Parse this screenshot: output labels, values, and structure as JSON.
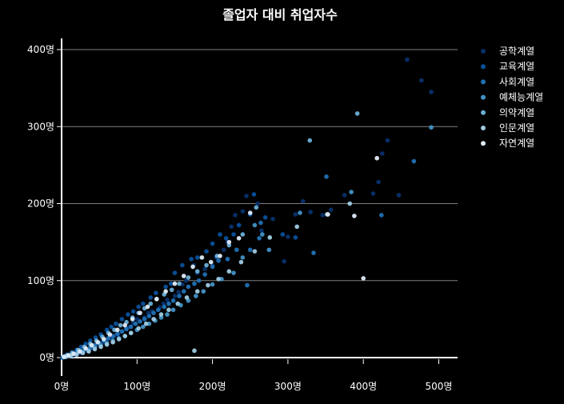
{
  "chart_data": {
    "type": "scatter",
    "title": "졸업자 대비 취업자수",
    "xlabel": "",
    "ylabel": "",
    "xlim": [
      0,
      520
    ],
    "ylim": [
      -8,
      410
    ],
    "x_ticks": [
      {
        "value": 0,
        "label": "0명"
      },
      {
        "value": 100,
        "label": "100명"
      },
      {
        "value": 200,
        "label": "200명"
      },
      {
        "value": 300,
        "label": "300명"
      },
      {
        "value": 400,
        "label": "400명"
      },
      {
        "value": 500,
        "label": "500명"
      }
    ],
    "y_ticks": [
      {
        "value": 0,
        "label": "0명"
      },
      {
        "value": 100,
        "label": "100명"
      },
      {
        "value": 200,
        "label": "200명"
      },
      {
        "value": 300,
        "label": "300명"
      },
      {
        "value": 400,
        "label": "400명"
      }
    ],
    "grid": "horizontal",
    "legend_position": "top-right",
    "series": [
      {
        "name": "공학계열",
        "color": "#08306b",
        "points": [
          [
            458,
            387
          ],
          [
            477,
            360
          ],
          [
            490,
            345
          ],
          [
            432,
            282
          ],
          [
            425,
            265
          ],
          [
            420,
            228
          ],
          [
            447,
            211
          ],
          [
            413,
            213
          ],
          [
            375,
            211
          ],
          [
            357,
            192
          ],
          [
            346,
            185
          ],
          [
            330,
            189
          ],
          [
            320,
            203
          ],
          [
            310,
            186
          ],
          [
            300,
            157
          ],
          [
            295,
            125
          ],
          [
            280,
            180
          ],
          [
            265,
            165
          ],
          [
            260,
            200
          ],
          [
            245,
            210
          ],
          [
            240,
            190
          ],
          [
            230,
            185
          ],
          [
            225,
            170
          ],
          [
            220,
            150
          ],
          [
            215,
            140
          ],
          [
            205,
            130
          ],
          [
            200,
            120
          ],
          [
            190,
            115
          ],
          [
            180,
            110
          ],
          [
            175,
            120
          ],
          [
            165,
            100
          ],
          [
            160,
            95
          ],
          [
            155,
            85
          ],
          [
            150,
            80
          ],
          [
            140,
            75
          ],
          [
            135,
            70
          ],
          [
            130,
            65
          ],
          [
            120,
            60
          ],
          [
            115,
            58
          ],
          [
            110,
            52
          ],
          [
            100,
            50
          ],
          [
            95,
            45
          ],
          [
            90,
            40
          ],
          [
            85,
            38
          ],
          [
            80,
            34
          ],
          [
            75,
            30
          ],
          [
            70,
            28
          ],
          [
            65,
            26
          ],
          [
            60,
            24
          ],
          [
            55,
            20
          ],
          [
            50,
            18
          ],
          [
            45,
            15
          ],
          [
            40,
            12
          ],
          [
            35,
            10
          ],
          [
            30,
            8
          ],
          [
            25,
            6
          ],
          [
            20,
            4
          ],
          [
            15,
            3
          ],
          [
            10,
            2
          ],
          [
            5,
            1
          ],
          [
            2,
            0
          ]
        ]
      },
      {
        "name": "교육계열",
        "color": "#08519c",
        "points": [
          [
            310,
            156
          ],
          [
            293,
            160
          ],
          [
            270,
            182
          ],
          [
            255,
            212
          ],
          [
            250,
            186
          ],
          [
            235,
            172
          ],
          [
            228,
            160
          ],
          [
            218,
            155
          ],
          [
            210,
            160
          ],
          [
            200,
            148
          ],
          [
            192,
            138
          ],
          [
            180,
            130
          ],
          [
            172,
            128
          ],
          [
            160,
            120
          ],
          [
            150,
            110
          ],
          [
            145,
            96
          ],
          [
            138,
            92
          ],
          [
            125,
            84
          ],
          [
            118,
            78
          ],
          [
            108,
            70
          ],
          [
            102,
            66
          ],
          [
            95,
            60
          ],
          [
            88,
            56
          ],
          [
            80,
            50
          ],
          [
            72,
            44
          ],
          [
            66,
            40
          ],
          [
            60,
            36
          ],
          [
            52,
            30
          ],
          [
            45,
            26
          ],
          [
            38,
            22
          ],
          [
            32,
            18
          ],
          [
            26,
            14
          ],
          [
            20,
            10
          ],
          [
            14,
            7
          ],
          [
            8,
            4
          ],
          [
            4,
            2
          ],
          [
            1,
            0
          ]
        ]
      },
      {
        "name": "사회계열",
        "color": "#2171b5",
        "points": [
          [
            467,
            255
          ],
          [
            424,
            185
          ],
          [
            351,
            235
          ],
          [
            334,
            136
          ],
          [
            264,
            175
          ],
          [
            262,
            155
          ],
          [
            250,
            140
          ],
          [
            246,
            94
          ],
          [
            232,
            140
          ],
          [
            220,
            128
          ],
          [
            208,
            126
          ],
          [
            200,
            118
          ],
          [
            190,
            108
          ],
          [
            182,
            100
          ],
          [
            176,
            96
          ],
          [
            168,
            92
          ],
          [
            162,
            86
          ],
          [
            156,
            80
          ],
          [
            148,
            74
          ],
          [
            142,
            70
          ],
          [
            136,
            66
          ],
          [
            128,
            62
          ],
          [
            122,
            58
          ],
          [
            116,
            54
          ],
          [
            110,
            50
          ],
          [
            104,
            47
          ],
          [
            98,
            44
          ],
          [
            92,
            40
          ],
          [
            86,
            37
          ],
          [
            80,
            34
          ],
          [
            74,
            31
          ],
          [
            68,
            28
          ],
          [
            62,
            25
          ],
          [
            56,
            22
          ],
          [
            50,
            19
          ],
          [
            44,
            16
          ],
          [
            38,
            14
          ],
          [
            32,
            11
          ],
          [
            26,
            9
          ],
          [
            20,
            7
          ],
          [
            14,
            5
          ],
          [
            8,
            3
          ],
          [
            3,
            1
          ]
        ]
      },
      {
        "name": "예체능계열",
        "color": "#4292c6",
        "points": [
          [
            490,
            299
          ],
          [
            384,
            215
          ],
          [
            316,
            188
          ],
          [
            275,
            140
          ],
          [
            266,
            160
          ],
          [
            256,
            172
          ],
          [
            240,
            130
          ],
          [
            228,
            110
          ],
          [
            212,
            102
          ],
          [
            200,
            95
          ],
          [
            188,
            86
          ],
          [
            178,
            80
          ],
          [
            168,
            74
          ],
          [
            158,
            68
          ],
          [
            148,
            62
          ],
          [
            140,
            56
          ],
          [
            132,
            52
          ],
          [
            124,
            48
          ],
          [
            116,
            44
          ],
          [
            108,
            40
          ],
          [
            100,
            36
          ],
          [
            92,
            32
          ],
          [
            84,
            28
          ],
          [
            76,
            25
          ],
          [
            68,
            22
          ],
          [
            60,
            19
          ],
          [
            52,
            16
          ],
          [
            44,
            13
          ],
          [
            36,
            10
          ],
          [
            28,
            8
          ],
          [
            20,
            5
          ],
          [
            12,
            3
          ],
          [
            6,
            1
          ]
        ]
      },
      {
        "name": "의약계열",
        "color": "#6baed6",
        "points": [
          [
            392,
            317
          ],
          [
            329,
            282
          ],
          [
            258,
            195
          ],
          [
            240,
            160
          ],
          [
            222,
            146
          ],
          [
            206,
            132
          ],
          [
            192,
            120
          ],
          [
            180,
            112
          ],
          [
            168,
            104
          ],
          [
            156,
            96
          ],
          [
            146,
            88
          ],
          [
            136,
            82
          ],
          [
            126,
            76
          ],
          [
            118,
            70
          ],
          [
            110,
            64
          ],
          [
            102,
            58
          ],
          [
            94,
            52
          ],
          [
            86,
            46
          ],
          [
            78,
            42
          ],
          [
            70,
            36
          ],
          [
            62,
            32
          ],
          [
            54,
            27
          ],
          [
            46,
            22
          ],
          [
            38,
            18
          ],
          [
            30,
            14
          ],
          [
            22,
            10
          ],
          [
            14,
            6
          ],
          [
            7,
            3
          ]
        ]
      },
      {
        "name": "인문계열",
        "color": "#9ecae1",
        "points": [
          [
            382,
            200
          ],
          [
            352,
            186
          ],
          [
            312,
            170
          ],
          [
            276,
            156
          ],
          [
            256,
            138
          ],
          [
            238,
            124
          ],
          [
            222,
            112
          ],
          [
            208,
            102
          ],
          [
            194,
            94
          ],
          [
            180,
            86
          ],
          [
            176,
            9
          ],
          [
            166,
            78
          ],
          [
            154,
            70
          ],
          [
            142,
            62
          ],
          [
            132,
            56
          ],
          [
            122,
            50
          ],
          [
            112,
            44
          ],
          [
            102,
            38
          ],
          [
            92,
            32
          ],
          [
            84,
            28
          ],
          [
            76,
            24
          ],
          [
            68,
            20
          ],
          [
            60,
            17
          ],
          [
            52,
            14
          ],
          [
            44,
            11
          ],
          [
            36,
            8
          ],
          [
            28,
            6
          ],
          [
            20,
            4
          ],
          [
            12,
            2
          ],
          [
            5,
            1
          ]
        ]
      },
      {
        "name": "자연계열",
        "color": "#deebf7",
        "points": [
          [
            418,
            259
          ],
          [
            400,
            103
          ],
          [
            388,
            184
          ],
          [
            353,
            186
          ],
          [
            250,
            188
          ],
          [
            235,
            155
          ],
          [
            222,
            150
          ],
          [
            210,
            132
          ],
          [
            198,
            124
          ],
          [
            186,
            130
          ],
          [
            174,
            118
          ],
          [
            162,
            106
          ],
          [
            150,
            96
          ],
          [
            138,
            86
          ],
          [
            126,
            76
          ],
          [
            114,
            66
          ],
          [
            104,
            58
          ],
          [
            94,
            50
          ],
          [
            84,
            42
          ],
          [
            74,
            36
          ],
          [
            64,
            30
          ],
          [
            56,
            24
          ],
          [
            48,
            20
          ],
          [
            40,
            16
          ],
          [
            32,
            12
          ],
          [
            24,
            8
          ],
          [
            16,
            5
          ],
          [
            9,
            3
          ],
          [
            3,
            1
          ]
        ]
      }
    ]
  }
}
